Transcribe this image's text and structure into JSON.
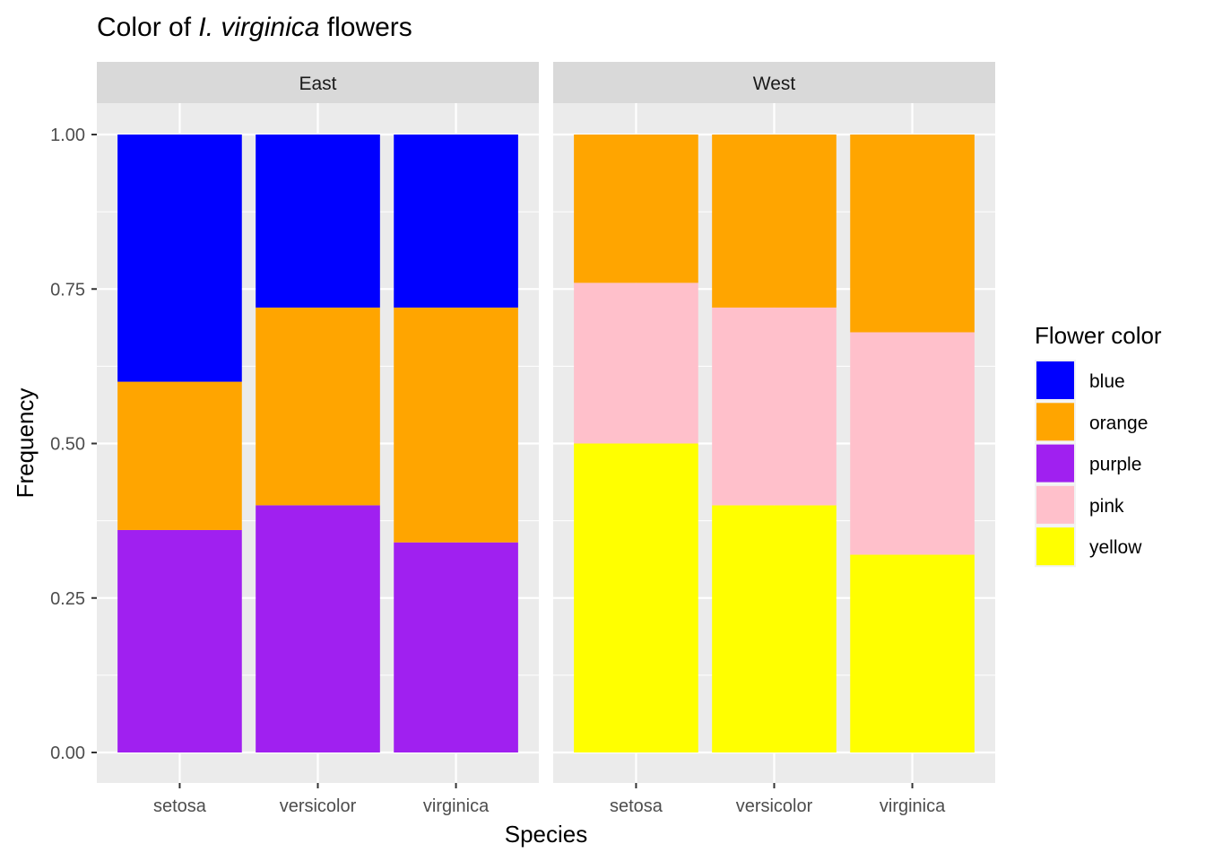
{
  "chart_data": {
    "type": "bar",
    "stacked": true,
    "title": {
      "prefix": "Color of ",
      "italic": "I. virginica",
      "suffix": " flowers"
    },
    "xlabel": "Species",
    "ylabel": "Frequency",
    "ylim": [
      0,
      1
    ],
    "yticks": [
      "0.00",
      "0.25",
      "0.50",
      "0.75",
      "1.00"
    ],
    "categories": [
      "setosa",
      "versicolor",
      "virginica"
    ],
    "grid": true,
    "legend": {
      "title": "Flower color",
      "placement": "right",
      "entries": [
        "blue",
        "orange",
        "purple",
        "pink",
        "yellow"
      ]
    },
    "colors": {
      "blue": "#0000FF",
      "orange": "#FFA500",
      "purple": "#A020F0",
      "pink": "#FFC0CB",
      "yellow": "#FFFF00"
    },
    "panels": [
      {
        "name": "East",
        "series": [
          {
            "name": "purple",
            "values": [
              0.36,
              0.4,
              0.34
            ]
          },
          {
            "name": "orange",
            "values": [
              0.24,
              0.32,
              0.38
            ]
          },
          {
            "name": "blue",
            "values": [
              0.4,
              0.28,
              0.28
            ]
          }
        ]
      },
      {
        "name": "West",
        "series": [
          {
            "name": "yellow",
            "values": [
              0.5,
              0.4,
              0.32
            ]
          },
          {
            "name": "pink",
            "values": [
              0.26,
              0.32,
              0.36
            ]
          },
          {
            "name": "orange",
            "values": [
              0.24,
              0.28,
              0.32
            ]
          }
        ]
      }
    ]
  }
}
